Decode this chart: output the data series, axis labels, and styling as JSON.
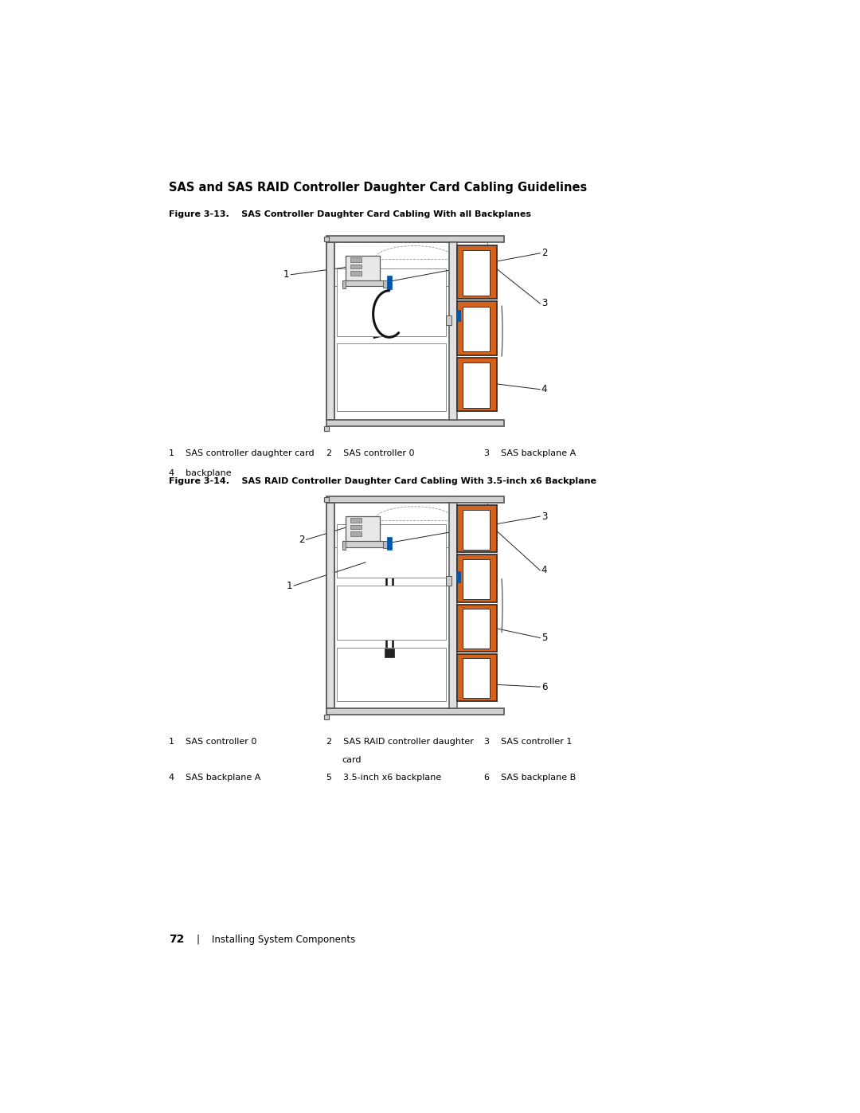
{
  "bg_color": "#ffffff",
  "page_width": 10.8,
  "page_height": 13.97,
  "main_title": "SAS and SAS RAID Controller Daughter Card Cabling Guidelines",
  "fig1_caption": "Figure 3-13.    SAS Controller Daughter Card Cabling With all Backplanes",
  "fig2_caption": "Figure 3-14.    SAS RAID Controller Daughter Card Cabling With 3.5-inch x6 Backplane",
  "fig1_legend": [
    [
      "1",
      "SAS controller daughter card",
      1.0,
      0
    ],
    [
      "2",
      "SAS controller 0",
      3.55,
      0
    ],
    [
      "3",
      "SAS backplane A",
      6.1,
      0
    ],
    [
      "4",
      "backplane",
      1.0,
      -0.32
    ]
  ],
  "fig2_legend": [
    [
      "1",
      "SAS controller 0",
      1.0,
      0
    ],
    [
      "2",
      "SAS RAID controller daughter",
      3.55,
      0
    ],
    [
      "",
      "card",
      3.8,
      -0.32
    ],
    [
      "3",
      "SAS controller 1",
      6.1,
      0
    ],
    [
      "4",
      "SAS backplane A",
      1.0,
      -0.62
    ],
    [
      "5",
      "3.5-inch x6 backplane",
      3.55,
      -0.62
    ],
    [
      "6",
      "SAS backplane B",
      6.1,
      -0.62
    ]
  ],
  "orange_color": "#D4621A",
  "blue_color": "#0055AA",
  "footer_text": "72",
  "footer_text2": "|   Installing System Components"
}
